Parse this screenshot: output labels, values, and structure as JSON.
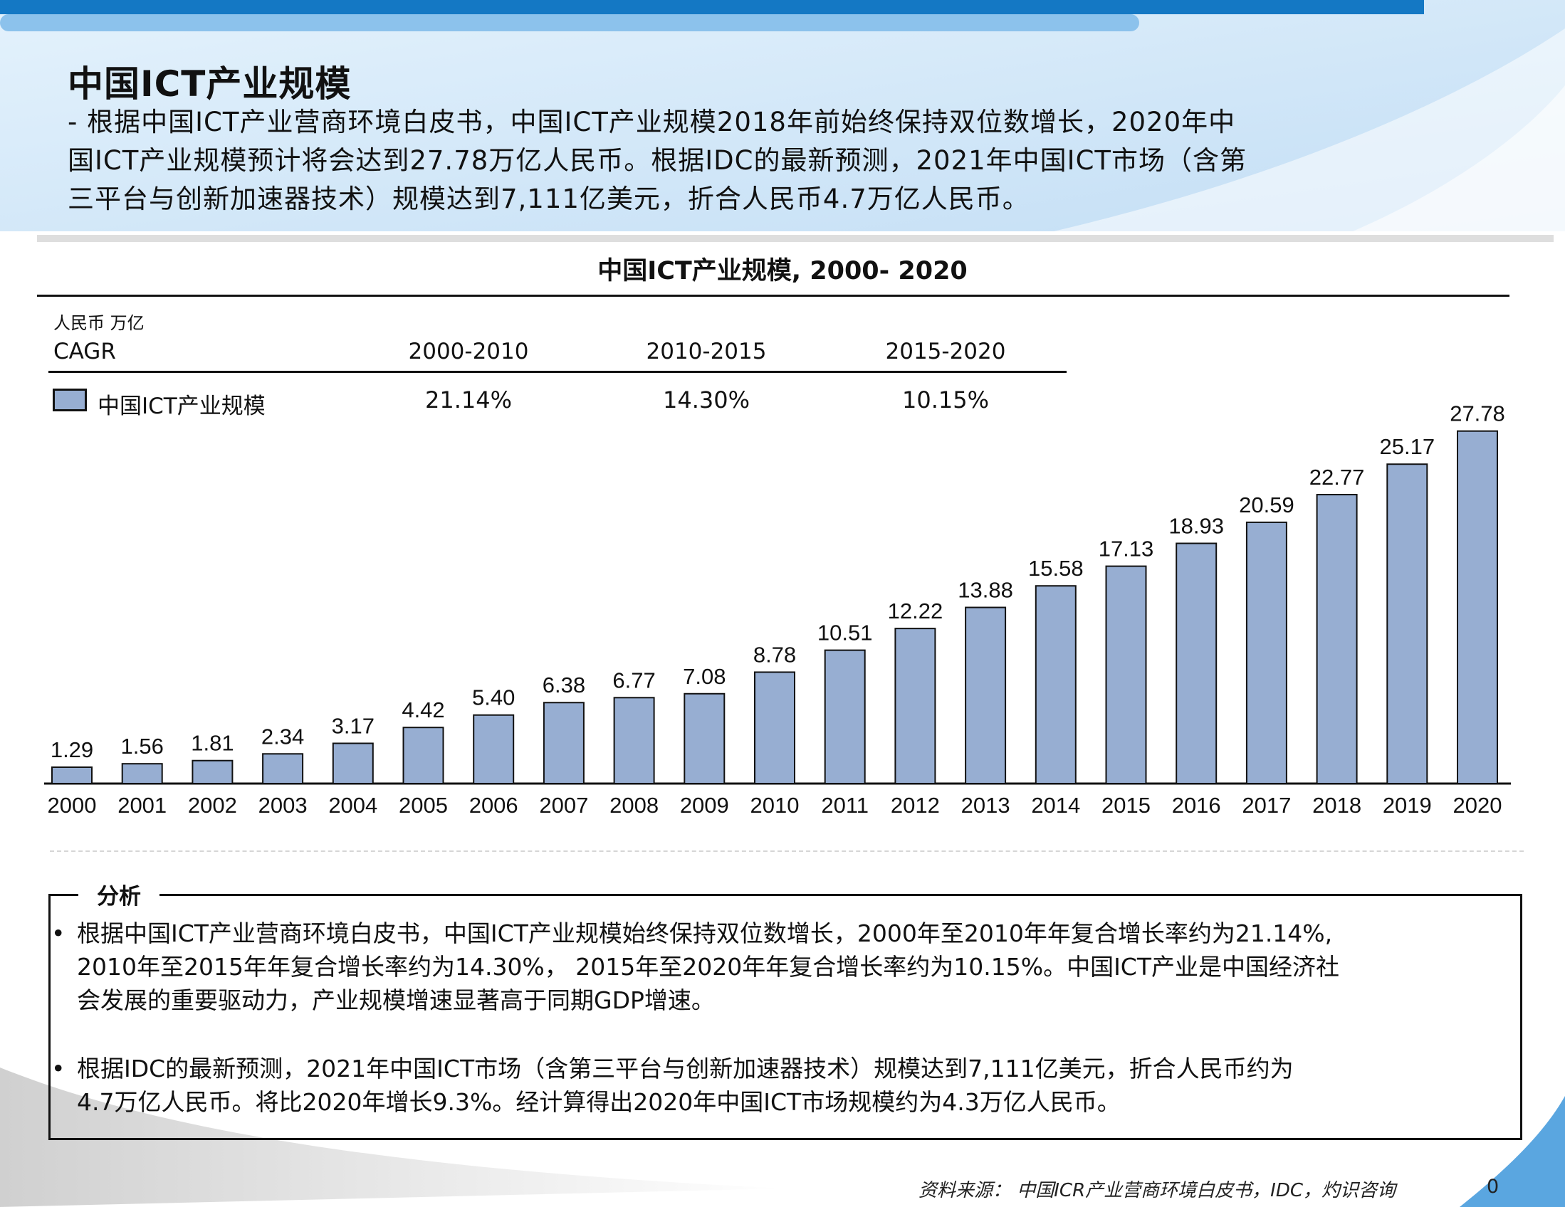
{
  "page_title": "中国ICT产业规模",
  "intro": [
    "- 根据中国ICT产业营商环境白皮书，中国ICT产业规模2018年前始终保持双位数增长，2020年中",
    "国ICT产业规模预计将会达到27.78万亿人民币。根据IDC的最新预测，2021年中国ICT市场（含第",
    "三平台与创新加速器技术）规模达到7,111亿美元，折合人民币4.7万亿人民币。"
  ],
  "cagr": {
    "label": "CAGR",
    "periods": [
      "2000-2010",
      "2010-2015",
      "2015-2020"
    ],
    "values": [
      "21.14%",
      "14.30%",
      "10.15%"
    ]
  },
  "chart_data": {
    "type": "bar",
    "title": "中国ICT产业规模, 2000- 2020",
    "ylabel": "人民币 万亿",
    "xlabel": "",
    "categories": [
      "2000",
      "2001",
      "2002",
      "2003",
      "2004",
      "2005",
      "2006",
      "2007",
      "2008",
      "2009",
      "2010",
      "2011",
      "2012",
      "2013",
      "2014",
      "2015",
      "2016",
      "2017",
      "2018",
      "2019",
      "2020"
    ],
    "series": [
      {
        "name": "中国ICT产业规模",
        "values": [
          1.29,
          1.56,
          1.81,
          2.34,
          3.17,
          4.42,
          5.4,
          6.38,
          6.77,
          7.08,
          8.78,
          10.51,
          12.22,
          13.88,
          15.58,
          17.13,
          18.93,
          20.59,
          22.77,
          25.17,
          27.78
        ]
      }
    ],
    "data_labels": [
      "1.29",
      "1.56",
      "1.81",
      "2.34",
      "3.17",
      "4.42",
      "5.40",
      "6.38",
      "6.77",
      "7.08",
      "8.78",
      "10.51",
      "12.22",
      "13.88",
      "15.58",
      "17.13",
      "18.93",
      "20.59",
      "22.77",
      "25.17",
      "27.78"
    ],
    "ylim": [
      0,
      30
    ],
    "grid": false,
    "legend": "top-left",
    "bar_color": "#97aed2"
  },
  "analysis": {
    "title": "分析",
    "bullet_symbol": "•",
    "bullets": [
      [
        "根据中国ICT产业营商环境白皮书，中国ICT产业规模始终保持双位数增长，2000年至2010年年复合增长率约为21.14%,",
        "2010年至2015年年复合增长率约为14.30%， 2015年至2020年年复合增长率约为10.15%。中国ICT产业是中国经济社",
        "会发展的重要驱动力，产业规模增速显著高于同期GDP增速。"
      ],
      [
        "根据IDC的最新预测，2021年中国ICT市场（含第三平台与创新加速器技术）规模达到7,111亿美元，折合人民币约为",
        "4.7万亿人民币。将比2020年增长9.3%。经计算得出2020年中国ICT市场规模约为4.3万亿人民币。"
      ]
    ]
  },
  "source": "资料来源： 中国ICR产业营商环境白皮书，IDC，灼识咨询",
  "page_number": "0",
  "colors": {
    "header_blue": "#1478c4",
    "light_blue": "#d2e7f8",
    "bar": "#97aed2"
  }
}
